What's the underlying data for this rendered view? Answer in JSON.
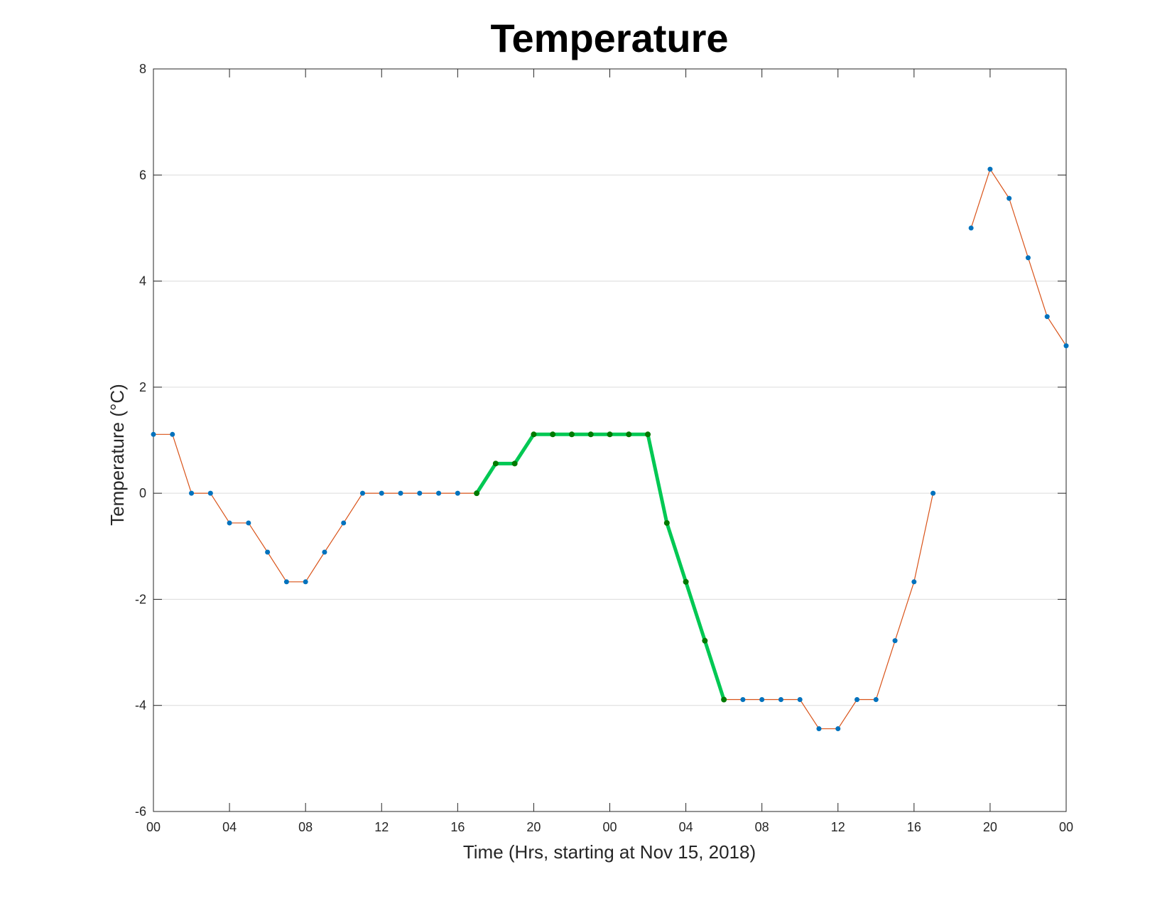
{
  "chart_data": {
    "type": "line",
    "title": "Temperature",
    "xlabel": "Time (Hrs, starting at Nov 15, 2018)",
    "ylabel": "Temperature (°C)",
    "xlim": [
      "2018-11-15 00:00",
      "2018-11-17 00:00"
    ],
    "ylim": [
      -6,
      8
    ],
    "y_ticks": [
      -6,
      -4,
      -2,
      0,
      2,
      4,
      6,
      8
    ],
    "x_ticks": [
      {
        "t": "2018-11-15 00:00",
        "label": "00"
      },
      {
        "t": "2018-11-15 04:00",
        "label": "04"
      },
      {
        "t": "2018-11-15 08:00",
        "label": "08"
      },
      {
        "t": "2018-11-15 12:00",
        "label": "12"
      },
      {
        "t": "2018-11-15 16:00",
        "label": "16"
      },
      {
        "t": "2018-11-15 20:00",
        "label": "20"
      },
      {
        "t": "2018-11-16 00:00",
        "label": "00"
      },
      {
        "t": "2018-11-16 04:00",
        "label": "04"
      },
      {
        "t": "2018-11-16 08:00",
        "label": "08"
      },
      {
        "t": "2018-11-16 12:00",
        "label": "12"
      },
      {
        "t": "2018-11-16 16:00",
        "label": "16"
      },
      {
        "t": "2018-11-16 20:00",
        "label": "20"
      },
      {
        "t": "2018-11-17 00:00",
        "label": "00"
      }
    ],
    "grid": {
      "y": true,
      "x": false
    },
    "series": [
      {
        "color": "#D95319",
        "marker_color": "#0072BD",
        "points": [
          {
            "t": "2018-11-15 00:00",
            "y": 1.11
          },
          {
            "t": "2018-11-15 01:00",
            "y": 1.11
          },
          {
            "t": "2018-11-15 02:00",
            "y": 0.0
          },
          {
            "t": "2018-11-15 03:00",
            "y": 0.0
          },
          {
            "t": "2018-11-15 04:00",
            "y": -0.56
          },
          {
            "t": "2018-11-15 05:00",
            "y": -0.56
          },
          {
            "t": "2018-11-15 06:00",
            "y": -1.11
          },
          {
            "t": "2018-11-15 07:00",
            "y": -1.67
          },
          {
            "t": "2018-11-15 08:00",
            "y": -1.67
          },
          {
            "t": "2018-11-15 09:00",
            "y": -1.11
          },
          {
            "t": "2018-11-15 10:00",
            "y": -0.56
          },
          {
            "t": "2018-11-15 11:00",
            "y": 0.0
          },
          {
            "t": "2018-11-15 12:00",
            "y": 0.0
          },
          {
            "t": "2018-11-15 13:00",
            "y": 0.0
          },
          {
            "t": "2018-11-15 14:00",
            "y": 0.0
          },
          {
            "t": "2018-11-15 15:00",
            "y": 0.0
          },
          {
            "t": "2018-11-15 16:00",
            "y": 0.0
          },
          {
            "t": "2018-11-15 17:00",
            "y": 0.0
          },
          {
            "t": "2018-11-15 18:00",
            "y": 0.56
          },
          {
            "t": "2018-11-15 19:00",
            "y": 0.56
          },
          {
            "t": "2018-11-15 20:00",
            "y": 1.11
          },
          {
            "t": "2018-11-15 21:00",
            "y": 1.11
          },
          {
            "t": "2018-11-15 22:00",
            "y": 1.11
          },
          {
            "t": "2018-11-15 23:00",
            "y": 1.11
          },
          {
            "t": "2018-11-16 00:00",
            "y": 1.11
          },
          {
            "t": "2018-11-16 01:00",
            "y": 1.11
          },
          {
            "t": "2018-11-16 02:00",
            "y": 1.11
          },
          {
            "t": "2018-11-16 03:00",
            "y": -0.56
          },
          {
            "t": "2018-11-16 04:00",
            "y": -1.67
          },
          {
            "t": "2018-11-16 05:00",
            "y": -2.78
          },
          {
            "t": "2018-11-16 06:00",
            "y": -3.89
          },
          {
            "t": "2018-11-16 07:00",
            "y": -3.89
          },
          {
            "t": "2018-11-16 08:00",
            "y": -3.89
          },
          {
            "t": "2018-11-16 09:00",
            "y": -3.89
          },
          {
            "t": "2018-11-16 10:00",
            "y": -3.89
          },
          {
            "t": "2018-11-16 11:00",
            "y": -4.44
          },
          {
            "t": "2018-11-16 12:00",
            "y": -4.44
          },
          {
            "t": "2018-11-16 13:00",
            "y": -3.89
          },
          {
            "t": "2018-11-16 14:00",
            "y": -3.89
          },
          {
            "t": "2018-11-16 15:00",
            "y": -2.78
          },
          {
            "t": "2018-11-16 16:00",
            "y": -1.67
          },
          {
            "t": "2018-11-16 17:00",
            "y": 0.0
          },
          {
            "t": "2018-11-16 18:00",
            "y": null
          },
          {
            "t": "2018-11-16 19:00",
            "y": 5.0
          },
          {
            "t": "2018-11-16 20:00",
            "y": 6.11
          },
          {
            "t": "2018-11-16 21:00",
            "y": 5.56
          },
          {
            "t": "2018-11-16 22:00",
            "y": 4.44
          },
          {
            "t": "2018-11-16 23:00",
            "y": 3.33
          },
          {
            "t": "2018-11-17 00:00",
            "y": 2.78
          }
        ]
      },
      {
        "color": "#00C853",
        "marker_color": "#007A00",
        "emphasis": true,
        "points": [
          {
            "t": "2018-11-15 17:00",
            "y": 0.0
          },
          {
            "t": "2018-11-15 18:00",
            "y": 0.56
          },
          {
            "t": "2018-11-15 19:00",
            "y": 0.56
          },
          {
            "t": "2018-11-15 20:00",
            "y": 1.11
          },
          {
            "t": "2018-11-15 21:00",
            "y": 1.11
          },
          {
            "t": "2018-11-15 22:00",
            "y": 1.11
          },
          {
            "t": "2018-11-15 23:00",
            "y": 1.11
          },
          {
            "t": "2018-11-16 00:00",
            "y": 1.11
          },
          {
            "t": "2018-11-16 01:00",
            "y": 1.11
          },
          {
            "t": "2018-11-16 02:00",
            "y": 1.11
          },
          {
            "t": "2018-11-16 03:00",
            "y": -0.56
          },
          {
            "t": "2018-11-16 04:00",
            "y": -1.67
          },
          {
            "t": "2018-11-16 05:00",
            "y": -2.78
          },
          {
            "t": "2018-11-16 06:00",
            "y": -3.89
          }
        ]
      }
    ]
  }
}
